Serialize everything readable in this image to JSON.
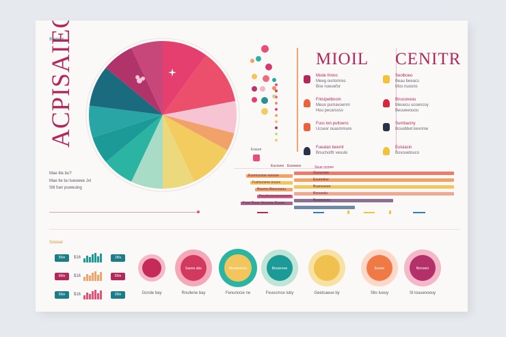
{
  "left_panel": {
    "small_label": "Steprcc",
    "vertical_title": "ACPISAIEO",
    "notes": [
      "Mae tile bu?",
      "Mae tie bu tueswee Jvl",
      "Stll fuer puweuing"
    ]
  },
  "pie": {
    "slices": [
      {
        "color": "#e43f6f",
        "value": 10
      },
      {
        "color": "#ec4f6c",
        "value": 12
      },
      {
        "color": "#f7c4d4",
        "value": 7
      },
      {
        "color": "#f1a26b",
        "value": 4
      },
      {
        "color": "#f2cc5f",
        "value": 10
      },
      {
        "color": "#ecd97e",
        "value": 7
      },
      {
        "color": "#a8dcc6",
        "value": 7
      },
      {
        "color": "#2bb4a2",
        "value": 7
      },
      {
        "color": "#1c9a98",
        "value": 6
      },
      {
        "color": "#2aa5a5",
        "value": 7
      },
      {
        "color": "#1b6b7e",
        "value": 9
      },
      {
        "color": "#b0346a",
        "value": 7
      },
      {
        "color": "#c8477a",
        "value": 7
      }
    ],
    "center_icon": "flower-icon"
  },
  "legend_dots": {
    "colors": [
      "#e94e77",
      "#f3a061",
      "#2ab3a5",
      "#d33c6a",
      "#f5c45e",
      "#26a9a0",
      "#eb6c7d",
      "#b8336a",
      "#f1b7c8",
      "#f28b5f",
      "#c5dc8e",
      "#26918f",
      "#e43f6f",
      "#f2cc5f"
    ],
    "caption": "Essuor"
  },
  "middle_section": {
    "title": "MIOIL",
    "rows": [
      {
        "icon": "person-icon",
        "color": "#b3285a",
        "lines": [
          "Mode Ihnno",
          "Meeg ourtomres",
          "Bne nueuefor"
        ]
      },
      {
        "icon": "rose-icon",
        "color": "#e8623b",
        "lines": [
          "Fntstpetbnom",
          "Meuo pumavoenm",
          "Heu pecarsosv"
        ]
      },
      {
        "icon": "hand-icon",
        "color": "#e8623b",
        "lines": [
          "Fuss ten puttoens",
          "Ucseor ouasmmure"
        ]
      },
      {
        "icon": "bottle-icon",
        "color": "#2a3346",
        "lines": [
          "Fueatan beernt",
          "Bnuchoiftr veuulo"
        ]
      }
    ]
  },
  "right_section": {
    "title": "CENITR",
    "rows": [
      {
        "icon": "star-icon",
        "color": "#f2c23a",
        "lines": [
          "Seolboeo",
          "Beau beeacs",
          "Mos nuoons"
        ]
      },
      {
        "icon": "lipstick-icon",
        "color": "#d6283a",
        "lines": [
          "Bnuconeou",
          "Meuecu ucoencoy",
          "Beuueeouou"
        ]
      },
      {
        "icon": "bowl-icon",
        "color": "#2a3346",
        "lines": [
          "Sumbaciny",
          "Bcuebbet kevnme"
        ]
      },
      {
        "icon": "drop-icon",
        "color": "#f2c23a",
        "lines": [
          "Euluiacin",
          "Bovouetouco"
        ]
      }
    ]
  },
  "bars_section": {
    "header_labels": [
      "Eucoves",
      "Eusowes",
      "Seue ocmee"
    ],
    "left_bars": [
      {
        "color": "#f4a166",
        "label": "Euoncouroe eaouse",
        "value": 0.9
      },
      {
        "color": "#f2c65c",
        "label": "Fuslouneoe euuce",
        "value": 0.82
      },
      {
        "color": "#f0a36a",
        "label": "Biuoms Bieuoouou",
        "value": 0.72
      },
      {
        "color": "#cf5d8a",
        "label": "Feuvleoveosvoouom",
        "value": 0.68
      },
      {
        "color": "#a2668f",
        "label": "Feoe Buuu. feuouee Euuoa",
        "value": 1.0
      }
    ],
    "right_bars": [
      {
        "color": "#f07a6a",
        "label": "Guoucoee",
        "value": 1.0
      },
      {
        "color": "#f4a166",
        "label": "Eourooloe",
        "value": 1.0
      },
      {
        "color": "#f2c65c",
        "label": "Buanoueee",
        "value": 1.0
      },
      {
        "color": "#f0a890",
        "label": "Boouoolu",
        "value": 1.0
      },
      {
        "color": "#8b6f93",
        "label": "Buoaouvou",
        "value": 0.62
      },
      {
        "color": "#6f88a8",
        "label": "",
        "value": 0.38
      }
    ]
  },
  "bottom_section": {
    "label": "Scleoal",
    "stats": [
      {
        "left": "55ie",
        "num": "$16",
        "right": "18lu",
        "color": "#1c7c87"
      },
      {
        "left": "66lo",
        "num": "$16",
        "right": "65le",
        "color": "#b3285a"
      },
      {
        "left": "56ie",
        "num": "$16",
        "right": "26le",
        "color": "#1c7c87"
      }
    ],
    "mini_chart_colors": [
      "#1c9a98",
      "#f1a26b",
      "#e94e77"
    ],
    "rings": [
      {
        "outer": "#f5b8c6",
        "inner": "#c52a5b",
        "text": "",
        "caption": "Gcnde bay"
      },
      {
        "outer": "#f4a8b8",
        "inner": "#d3385f",
        "text": "Saeee abe",
        "caption": "Rnuliene bay"
      },
      {
        "outer": "#2bb4a2",
        "inner": "#f2c65c",
        "text": "Mcueiecnce",
        "caption": "Fenunncie ne"
      },
      {
        "outer": "#bfe5d7",
        "inner": "#1c9a98",
        "text": "Beuseooe",
        "caption": "Feuucmce luby"
      },
      {
        "outer": "#f7e2a3",
        "inner": "#f1c14f",
        "text": "",
        "caption": "Geetcaeue by"
      },
      {
        "outer": "#fdd8c8",
        "inner": "#f07a45",
        "text": "Eeuoe",
        "caption": "Sllo Iueuy"
      },
      {
        "outer": "#f4b8c8",
        "inner": "#b3306a",
        "text": "Benoeio",
        "caption": "St louuenoeuy"
      }
    ]
  }
}
